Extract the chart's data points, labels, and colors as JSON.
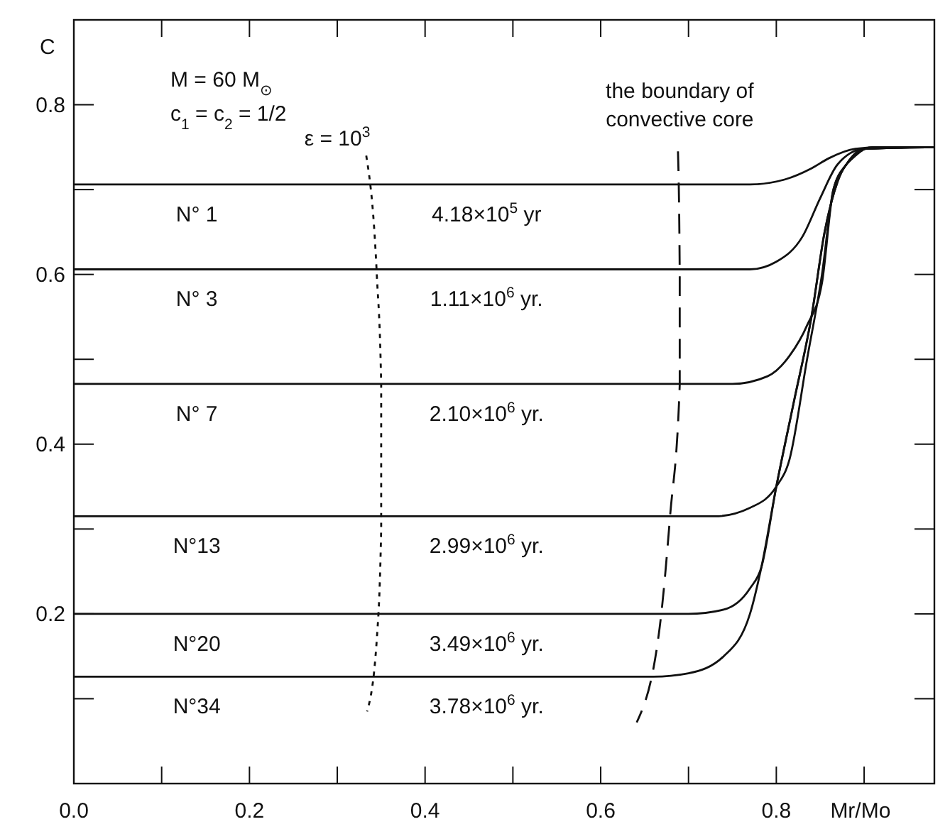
{
  "chart_data": {
    "type": "line",
    "xlabel": "Mr/Mo",
    "ylabel": "C",
    "xlim": [
      0,
      0.98
    ],
    "ylim": [
      0,
      0.9
    ],
    "xticks": [
      {
        "value": 0,
        "label": "0.0"
      },
      {
        "value": 0.1,
        "label": null
      },
      {
        "value": 0.2,
        "label": "0.2"
      },
      {
        "value": 0.3,
        "label": null
      },
      {
        "value": 0.4,
        "label": "0.4"
      },
      {
        "value": 0.5,
        "label": null
      },
      {
        "value": 0.6,
        "label": "0.6"
      },
      {
        "value": 0.7,
        "label": null
      },
      {
        "value": 0.8,
        "label": "0.8"
      },
      {
        "value": 0.9,
        "label": null
      }
    ],
    "yticks": [
      {
        "value": 0.1,
        "label": null
      },
      {
        "value": 0.2,
        "label": "0.2"
      },
      {
        "value": 0.3,
        "label": null
      },
      {
        "value": 0.4,
        "label": "0.4"
      },
      {
        "value": 0.5,
        "label": null
      },
      {
        "value": 0.6,
        "label": "0.6"
      },
      {
        "value": 0.7,
        "label": null
      },
      {
        "value": 0.8,
        "label": "0.8"
      }
    ],
    "grid": false,
    "marker": "none",
    "series": [
      {
        "name": "N° 1",
        "color": "#111111",
        "x": [
          0,
          0.77,
          0.81,
          0.84,
          0.86,
          0.89,
          0.92,
          0.98
        ],
        "values": [
          0.706,
          0.706,
          0.712,
          0.725,
          0.737,
          0.748,
          0.75,
          0.75
        ]
      },
      {
        "name": "N° 3",
        "color": "#111111",
        "x": [
          0,
          0.77,
          0.8,
          0.83,
          0.85,
          0.87,
          0.9,
          0.98
        ],
        "values": [
          0.606,
          0.606,
          0.615,
          0.645,
          0.69,
          0.73,
          0.748,
          0.75
        ]
      },
      {
        "name": "N° 7",
        "color": "#111111",
        "x": [
          0,
          0.75,
          0.79,
          0.815,
          0.835,
          0.852,
          0.865,
          0.88,
          0.9,
          0.98
        ],
        "values": [
          0.471,
          0.471,
          0.48,
          0.504,
          0.54,
          0.59,
          0.7,
          0.73,
          0.748,
          0.75
        ]
      },
      {
        "name": "N°13",
        "color": "#111111",
        "x": [
          0,
          0.73,
          0.77,
          0.8,
          0.815,
          0.835,
          0.852,
          0.865,
          0.88,
          0.9,
          0.98
        ],
        "values": [
          0.315,
          0.315,
          0.325,
          0.35,
          0.382,
          0.5,
          0.6,
          0.7,
          0.73,
          0.748,
          0.75
        ]
      },
      {
        "name": "N°20",
        "color": "#111111",
        "x": [
          0,
          0.7,
          0.74,
          0.77,
          0.783,
          0.8,
          0.82,
          0.84,
          0.855,
          0.87,
          0.89,
          0.91,
          0.98
        ],
        "values": [
          0.2,
          0.2,
          0.205,
          0.23,
          0.255,
          0.35,
          0.45,
          0.55,
          0.65,
          0.71,
          0.74,
          0.75,
          0.75
        ]
      },
      {
        "name": "N°34",
        "color": "#111111",
        "x": [
          0,
          0.66,
          0.7,
          0.74,
          0.77,
          0.783,
          0.8,
          0.82,
          0.84,
          0.855,
          0.87,
          0.89,
          0.91,
          0.98
        ],
        "values": [
          0.126,
          0.126,
          0.13,
          0.15,
          0.2,
          0.255,
          0.35,
          0.45,
          0.55,
          0.65,
          0.71,
          0.74,
          0.75,
          0.75
        ]
      },
      {
        "color": "#111111",
        "line_style": "dotted",
        "x": [
          0.333,
          0.345,
          0.35,
          0.35,
          0.345,
          0.334
        ],
        "values": [
          0.74,
          0.6,
          0.47,
          0.3,
          0.17,
          0.085
        ]
      },
      {
        "color": "#111111",
        "line_style": "dashed",
        "x": [
          0.688,
          0.69,
          0.69,
          0.679,
          0.669,
          0.641
        ],
        "values": [
          0.745,
          0.6,
          0.47,
          0.315,
          0.2,
          0.072
        ]
      }
    ],
    "annotations": [
      "M = 60 M$_{⊙}$",
      "c$_{1}$ = c$_{2}$ = 1/2",
      "ε = 10$^{3}$",
      "the boundary of convective core",
      "4.18×10$^{5}$ yr",
      "1.11×10$^{6}$ yr.",
      "2.10×10$^{6}$ yr.",
      "2.99×10$^{6}$ yr.",
      "3.49×10$^{6}$ yr.",
      "3.78×10$^{6}$ yr."
    ]
  }
}
